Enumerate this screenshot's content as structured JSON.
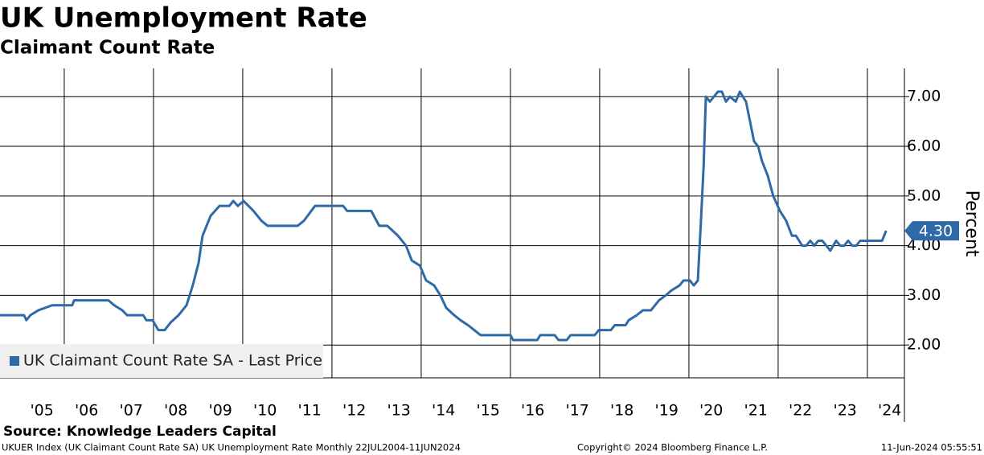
{
  "chart_data": {
    "type": "line",
    "title": "UK Unemployment Rate",
    "subtitle": "Claimant Count Rate",
    "y_label": "Percent",
    "source": "Source: Knowledge Leaders Capital",
    "footer_left": "UKUER Index (UK Claimant Count Rate SA) UK Unemployment Rate  Monthly 22JUL2004-11JUN2024",
    "footer_center": "Copyright© 2024 Bloomberg Finance L.P.",
    "footer_right": "11-Jun-2024 05:55:51",
    "last_value_label": "4.30",
    "legend": "lower left",
    "grid": true,
    "xlim": [
      2004.56,
      2024.83
    ],
    "ylim": [
      1.34,
      7.57
    ],
    "xgrid": [
      2006,
      2008,
      2010,
      2012,
      2014,
      2016,
      2018,
      2020,
      2022,
      2024
    ],
    "xticks": [
      {
        "value": 2005.5,
        "label": "'05"
      },
      {
        "value": 2006.5,
        "label": "'06"
      },
      {
        "value": 2007.5,
        "label": "'07"
      },
      {
        "value": 2008.5,
        "label": "'08"
      },
      {
        "value": 2009.5,
        "label": "'09"
      },
      {
        "value": 2010.5,
        "label": "'10"
      },
      {
        "value": 2011.5,
        "label": "'11"
      },
      {
        "value": 2012.5,
        "label": "'12"
      },
      {
        "value": 2013.5,
        "label": "'13"
      },
      {
        "value": 2014.5,
        "label": "'14"
      },
      {
        "value": 2015.5,
        "label": "'15"
      },
      {
        "value": 2016.5,
        "label": "'16"
      },
      {
        "value": 2017.5,
        "label": "'17"
      },
      {
        "value": 2018.5,
        "label": "'18"
      },
      {
        "value": 2019.5,
        "label": "'19"
      },
      {
        "value": 2020.5,
        "label": "'20"
      },
      {
        "value": 2021.5,
        "label": "'21"
      },
      {
        "value": 2022.5,
        "label": "'22"
      },
      {
        "value": 2023.5,
        "label": "'23"
      },
      {
        "value": 2024.5,
        "label": "'24"
      }
    ],
    "yticks": [
      {
        "value": 2,
        "label": "2.00"
      },
      {
        "value": 3,
        "label": "3.00"
      },
      {
        "value": 4,
        "label": "4.00"
      },
      {
        "value": 5,
        "label": "5.00"
      },
      {
        "value": 6,
        "label": "6.00"
      },
      {
        "value": 7,
        "label": "7.00"
      }
    ],
    "x": [
      2004.56,
      2005.1,
      2005.15,
      2005.24,
      2005.42,
      2005.73,
      2006.18,
      2006.22,
      2006.99,
      2007.12,
      2007.3,
      2007.41,
      2007.77,
      2007.84,
      2007.98,
      2008.11,
      2008.25,
      2008.38,
      2008.56,
      2008.74,
      2008.88,
      2009.01,
      2009.1,
      2009.28,
      2009.48,
      2009.7,
      2009.79,
      2009.89,
      2010.02,
      2010.24,
      2010.42,
      2010.56,
      2011.23,
      2011.37,
      2011.62,
      2012.25,
      2012.34,
      2012.88,
      2013.06,
      2013.24,
      2013.48,
      2013.66,
      2013.79,
      2013.97,
      2014.11,
      2014.29,
      2014.43,
      2014.56,
      2014.74,
      2014.88,
      2015.05,
      2015.19,
      2015.33,
      2016.0,
      2016.06,
      2016.6,
      2016.67,
      2016.99,
      2017.08,
      2017.26,
      2017.35,
      2017.89,
      2017.98,
      2018.25,
      2018.34,
      2018.58,
      2018.65,
      2018.83,
      2018.97,
      2019.15,
      2019.33,
      2019.48,
      2019.61,
      2019.79,
      2019.88,
      2020.02,
      2020.11,
      2020.2,
      2020.27,
      2020.33,
      2020.38,
      2020.47,
      2020.65,
      2020.74,
      2020.83,
      2020.92,
      2021.05,
      2021.14,
      2021.28,
      2021.37,
      2021.46,
      2021.55,
      2021.64,
      2021.77,
      2021.89,
      2022.04,
      2022.18,
      2022.31,
      2022.4,
      2022.54,
      2022.63,
      2022.72,
      2022.81,
      2022.9,
      2022.99,
      2023.17,
      2023.3,
      2023.39,
      2023.48,
      2023.57,
      2023.66,
      2023.75,
      2023.84,
      2024.33,
      2024.42
    ],
    "series": [
      {
        "name": "UK Claimant Count Rate SA - Last Price",
        "color": "#2f6aa8",
        "values": [
          2.6,
          2.6,
          2.5,
          2.6,
          2.7,
          2.8,
          2.8,
          2.9,
          2.9,
          2.8,
          2.7,
          2.6,
          2.6,
          2.5,
          2.5,
          2.3,
          2.3,
          2.45,
          2.6,
          2.8,
          3.2,
          3.65,
          4.2,
          4.6,
          4.8,
          4.8,
          4.9,
          4.8,
          4.9,
          4.7,
          4.5,
          4.4,
          4.4,
          4.5,
          4.8,
          4.8,
          4.7,
          4.7,
          4.4,
          4.4,
          4.2,
          4.0,
          3.7,
          3.6,
          3.3,
          3.2,
          3.0,
          2.75,
          2.6,
          2.5,
          2.4,
          2.3,
          2.2,
          2.2,
          2.1,
          2.1,
          2.2,
          2.2,
          2.1,
          2.1,
          2.2,
          2.2,
          2.3,
          2.3,
          2.4,
          2.4,
          2.5,
          2.6,
          2.7,
          2.7,
          2.9,
          3.0,
          3.1,
          3.2,
          3.3,
          3.3,
          3.2,
          3.3,
          4.5,
          5.6,
          7.0,
          6.9,
          7.1,
          7.1,
          6.9,
          7.0,
          6.9,
          7.1,
          6.9,
          6.5,
          6.1,
          6.0,
          5.7,
          5.4,
          5.0,
          4.7,
          4.5,
          4.2,
          4.2,
          4.0,
          4.0,
          4.1,
          4.0,
          4.1,
          4.1,
          3.9,
          4.1,
          4.0,
          4.0,
          4.1,
          4.0,
          4.0,
          4.1,
          4.1,
          4.3
        ]
      }
    ]
  }
}
